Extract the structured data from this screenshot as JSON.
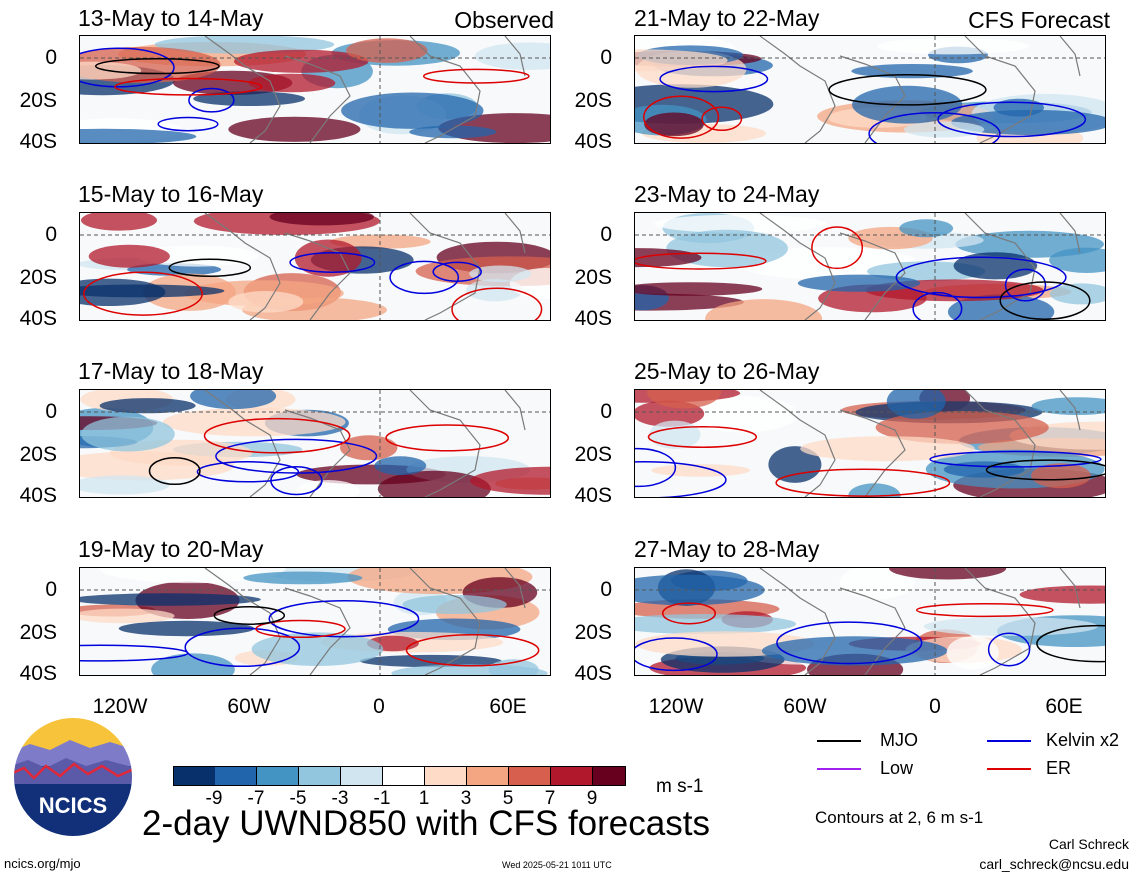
{
  "panels": {
    "left": [
      {
        "title": "13-May to 14-May",
        "tag": "Observed"
      },
      {
        "title": "15-May to 16-May",
        "tag": ""
      },
      {
        "title": "17-May to 18-May",
        "tag": ""
      },
      {
        "title": "19-May to 20-May",
        "tag": ""
      }
    ],
    "right": [
      {
        "title": "21-May to 22-May",
        "tag": "CFS Forecast"
      },
      {
        "title": "23-May to 24-May",
        "tag": ""
      },
      {
        "title": "25-May to 26-May",
        "tag": ""
      },
      {
        "title": "27-May to 28-May",
        "tag": ""
      }
    ]
  },
  "axes": {
    "lat_labels": [
      "0",
      "20S",
      "40S"
    ],
    "lon_labels": [
      "120W",
      "60W",
      "0",
      "60E"
    ]
  },
  "colorbar": {
    "colors": [
      "#08306b",
      "#2166ac",
      "#4393c3",
      "#92c5de",
      "#d1e5f0",
      "#ffffff",
      "#fddbc7",
      "#f4a582",
      "#d6604d",
      "#b2182b",
      "#67001f"
    ],
    "tick_labels": [
      "-9",
      "-7",
      "-5",
      "-3",
      "-1",
      "1",
      "3",
      "5",
      "7",
      "9"
    ],
    "units": "m s-1"
  },
  "legend": {
    "items": [
      {
        "label": "MJO",
        "color": "#000000"
      },
      {
        "label": "Kelvin x2",
        "color": "#0000dd"
      },
      {
        "label": "Low",
        "color": "#a020f0"
      },
      {
        "label": "ER",
        "color": "#dd0000"
      }
    ],
    "note": "Contours at 2, 6 m s-1"
  },
  "footer": {
    "title": "2-day UWND850 with CFS forecasts",
    "author": "Carl Schreck",
    "email": "carl_schreck@ncsu.edu",
    "site": "ncics.org/mjo",
    "timestamp": "Wed 2025-05-21 1011 UTC",
    "logo_text": "NCICS"
  }
}
